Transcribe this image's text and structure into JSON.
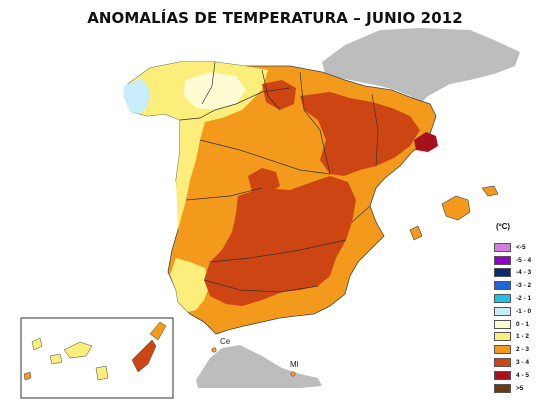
{
  "title": "ANOMALÍAS DE TEMPERATURA – JUNIO 2012",
  "legend": {
    "unit": "(ºC)",
    "items": [
      {
        "label": "<-5",
        "color": "#d27ddf"
      },
      {
        "label": "-5 - 4",
        "color": "#9400c8"
      },
      {
        "label": "-4 - 3",
        "color": "#0b2a6e"
      },
      {
        "label": "-3 - 2",
        "color": "#1e66d8"
      },
      {
        "label": "-2 - 1",
        "color": "#20c0e8"
      },
      {
        "label": "-1 - 0",
        "color": "#c8ecf8"
      },
      {
        "label": "0 - 1",
        "color": "#fffbd2"
      },
      {
        "label": "1 - 2",
        "color": "#fbee7a"
      },
      {
        "label": "2 - 3",
        "color": "#f39a1c"
      },
      {
        "label": "3 - 4",
        "color": "#cc4512"
      },
      {
        "label": "4 - 5",
        "color": "#a6111d"
      },
      {
        "label": ">5",
        "color": "#6b3a10"
      }
    ]
  },
  "cities": {
    "ceuta": "Ce",
    "melilla": "Ml"
  }
}
